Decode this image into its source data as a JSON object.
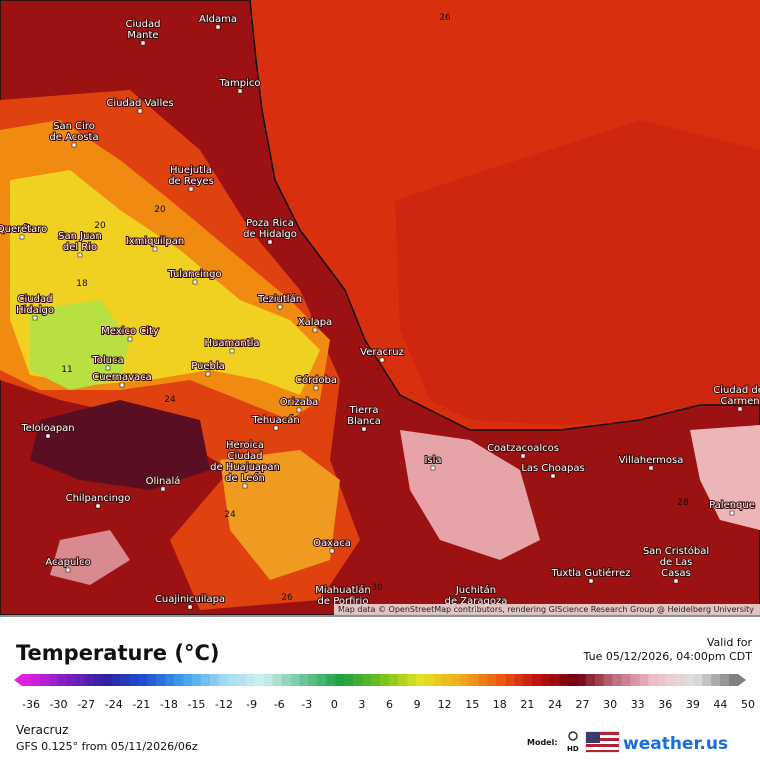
{
  "map": {
    "cities": [
      {
        "lines": [
          "Aldama"
        ]
      },
      {
        "lines": [
          "Ciudad",
          "Mante"
        ]
      },
      {
        "lines": [
          "Tampico"
        ]
      },
      {
        "lines": [
          "Ciudad Valles"
        ]
      },
      {
        "lines": [
          "San Ciro",
          "de Acosta"
        ]
      },
      {
        "lines": [
          "Huejutla",
          "de Reyes"
        ]
      },
      {
        "lines": [
          "Poza Rica",
          "de Hidalgo"
        ]
      },
      {
        "lines": [
          "San Juan",
          "del Rio"
        ]
      },
      {
        "lines": [
          "Ixmiquilpan"
        ]
      },
      {
        "lines": [
          "Querétaro"
        ]
      },
      {
        "lines": [
          "Tulancingo"
        ]
      },
      {
        "lines": [
          "Ciudad",
          "Hidalgo"
        ]
      },
      {
        "lines": [
          "Teziutlán"
        ]
      },
      {
        "lines": [
          "Xalapa"
        ]
      },
      {
        "lines": [
          "Mexico City"
        ]
      },
      {
        "lines": [
          "Huamantla"
        ]
      },
      {
        "lines": [
          "Toluca"
        ]
      },
      {
        "lines": [
          "Veracruz"
        ]
      },
      {
        "lines": [
          "Puebla"
        ]
      },
      {
        "lines": [
          "Cuernavaca"
        ]
      },
      {
        "lines": [
          "Córdoba"
        ]
      },
      {
        "lines": [
          "Orizaba"
        ]
      },
      {
        "lines": [
          "Tierra",
          "Blanca"
        ]
      },
      {
        "lines": [
          "Tehuacán"
        ]
      },
      {
        "lines": [
          "Teloloapan"
        ]
      },
      {
        "lines": [
          "Heroica",
          "Ciudad",
          "de Huajuapan",
          "de León"
        ]
      },
      {
        "lines": [
          "Coatzacoalcos"
        ]
      },
      {
        "lines": [
          "Isla"
        ]
      },
      {
        "lines": [
          "Las Choapas"
        ]
      },
      {
        "lines": [
          "Villahermosa"
        ]
      },
      {
        "lines": [
          "Olinalá"
        ]
      },
      {
        "lines": [
          "Chilpancingo"
        ]
      },
      {
        "lines": [
          "Palenque"
        ]
      },
      {
        "lines": [
          "Oaxaca"
        ]
      },
      {
        "lines": [
          "San Cristóbal",
          "de Las",
          "Casas"
        ]
      },
      {
        "lines": [
          "Acapulco"
        ]
      },
      {
        "lines": [
          "Tuxtla Gutiérrez"
        ]
      },
      {
        "lines": [
          "Juchitán",
          "de Zaragoza"
        ]
      },
      {
        "lines": [
          "Miahuatlán",
          "de Porfirio"
        ]
      },
      {
        "lines": [
          "Cuajinicuilapa"
        ]
      },
      {
        "lines": [
          "Ciudad del",
          "Carmen"
        ]
      }
    ],
    "contour_labels": [
      "26",
      "20",
      "20",
      "18",
      "11",
      "24",
      "24",
      "26",
      "30",
      "28"
    ],
    "attribution": "Map data © OpenStreetMap contributors, rendering GIScience Research Group @ Heidelberg University"
  },
  "legend": {
    "title": "Temperature (°C)",
    "ticks": [
      -36,
      -30,
      -27,
      -24,
      -21,
      -18,
      -15,
      -12,
      -9,
      -6,
      -3,
      0,
      3,
      6,
      9,
      12,
      15,
      18,
      21,
      24,
      27,
      30,
      33,
      36,
      39,
      44,
      50
    ]
  },
  "info": {
    "valid_label": "Valid for",
    "valid_time": "Tue 05/12/2026, 04:00pm CDT",
    "location": "Veracruz",
    "model_run": "GFS 0.125° from  05/11/2026/06z",
    "model_label": "Model:",
    "hd": "HD",
    "brand": "weather.us"
  }
}
